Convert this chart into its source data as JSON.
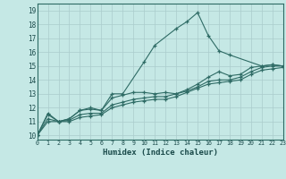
{
  "xlabel": "Humidex (Indice chaleur)",
  "ylabel": "",
  "bg_color": "#c5e8e5",
  "grid_color": "#aacccc",
  "line_color": "#2e6b65",
  "xlim": [
    0,
    23
  ],
  "ylim": [
    9.7,
    19.5
  ],
  "xticks": [
    0,
    1,
    2,
    3,
    4,
    5,
    6,
    7,
    8,
    9,
    10,
    11,
    12,
    13,
    14,
    15,
    16,
    17,
    18,
    19,
    20,
    21,
    22,
    23
  ],
  "yticks": [
    10,
    11,
    12,
    13,
    14,
    15,
    16,
    17,
    18,
    19
  ],
  "lines": [
    {
      "x": [
        0,
        1,
        2,
        3,
        4,
        5,
        6,
        7,
        8,
        10,
        11,
        13,
        14,
        15,
        16,
        17,
        18,
        21,
        22,
        23
      ],
      "y": [
        10.0,
        11.6,
        11.0,
        11.2,
        11.8,
        12.0,
        11.8,
        13.0,
        13.0,
        15.3,
        16.5,
        17.7,
        18.2,
        18.85,
        17.2,
        16.1,
        15.8,
        15.0,
        15.1,
        15.0
      ]
    },
    {
      "x": [
        0,
        1,
        2,
        3,
        4,
        5,
        6,
        7,
        8,
        9,
        10,
        11,
        12,
        13,
        14,
        15,
        16,
        17,
        18,
        19,
        20,
        21,
        22,
        23
      ],
      "y": [
        10.0,
        11.5,
        11.0,
        11.2,
        11.8,
        11.9,
        11.8,
        12.7,
        12.9,
        13.1,
        13.1,
        13.0,
        13.1,
        13.0,
        13.3,
        13.7,
        14.2,
        14.6,
        14.3,
        14.4,
        14.9,
        15.0,
        15.1,
        15.0
      ]
    },
    {
      "x": [
        0,
        1,
        2,
        3,
        4,
        5,
        6,
        7,
        8,
        9,
        10,
        11,
        12,
        13,
        14,
        15,
        16,
        17,
        18,
        19,
        20,
        21,
        22,
        23
      ],
      "y": [
        10.0,
        11.2,
        11.0,
        11.1,
        11.5,
        11.6,
        11.6,
        12.2,
        12.4,
        12.6,
        12.7,
        12.8,
        12.8,
        13.0,
        13.2,
        13.5,
        13.9,
        14.0,
        14.0,
        14.2,
        14.6,
        14.9,
        15.0,
        15.0
      ]
    },
    {
      "x": [
        0,
        1,
        2,
        3,
        4,
        5,
        6,
        7,
        8,
        9,
        10,
        11,
        12,
        13,
        14,
        15,
        16,
        17,
        18,
        19,
        20,
        21,
        22,
        23
      ],
      "y": [
        10.0,
        11.0,
        11.0,
        11.0,
        11.3,
        11.4,
        11.5,
        12.0,
        12.2,
        12.4,
        12.5,
        12.6,
        12.6,
        12.8,
        13.1,
        13.4,
        13.7,
        13.8,
        13.9,
        14.0,
        14.4,
        14.7,
        14.8,
        14.9
      ]
    }
  ]
}
